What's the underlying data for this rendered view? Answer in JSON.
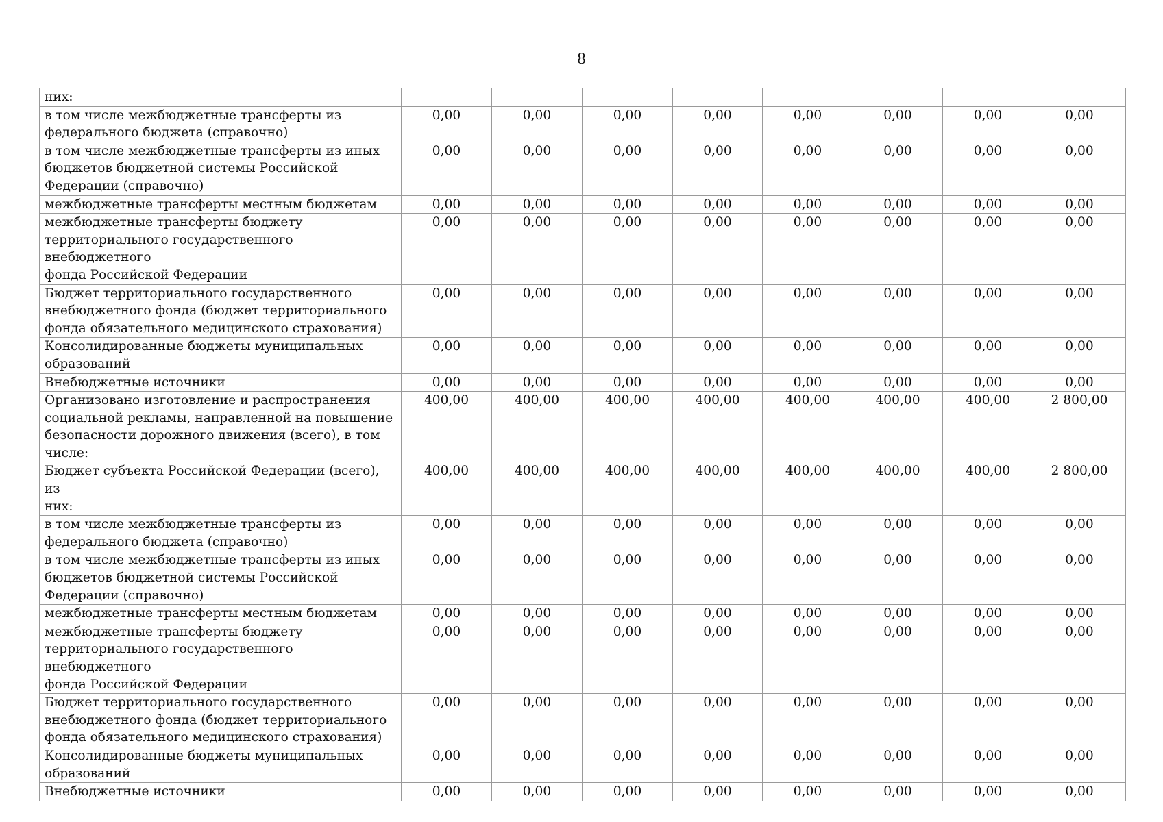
{
  "page_number": "8",
  "rows": [
    {
      "label": "них:",
      "values": [
        "",
        "",
        "",
        "",
        "",
        "",
        "",
        ""
      ]
    },
    {
      "label": "в том числе межбюджетные трансферты из\nфедерального бюджета (справочно)",
      "values": [
        "0,00",
        "0,00",
        "0,00",
        "0,00",
        "0,00",
        "0,00",
        "0,00",
        "0,00"
      ]
    },
    {
      "label": "в том числе межбюджетные трансферты из иных\nбюджетов бюджетной системы Российской\nФедерации (справочно)",
      "values": [
        "0,00",
        "0,00",
        "0,00",
        "0,00",
        "0,00",
        "0,00",
        "0,00",
        "0,00"
      ]
    },
    {
      "label": "межбюджетные трансферты местным бюджетам",
      "values": [
        "0,00",
        "0,00",
        "0,00",
        "0,00",
        "0,00",
        "0,00",
        "0,00",
        "0,00"
      ]
    },
    {
      "label": "межбюджетные трансферты бюджету\nтерриториального государственного внебюджетного\nфонда Российской Федерации",
      "values": [
        "0,00",
        "0,00",
        "0,00",
        "0,00",
        "0,00",
        "0,00",
        "0,00",
        "0,00"
      ]
    },
    {
      "label": "Бюджет территориального государственного\nвнебюджетного фонда (бюджет территориального\nфонда обязательного медицинского страхования)",
      "values": [
        "0,00",
        "0,00",
        "0,00",
        "0,00",
        "0,00",
        "0,00",
        "0,00",
        "0,00"
      ]
    },
    {
      "label": "Консолидированные бюджеты муниципальных\nобразований",
      "values": [
        "0,00",
        "0,00",
        "0,00",
        "0,00",
        "0,00",
        "0,00",
        "0,00",
        "0,00"
      ]
    },
    {
      "label": "Внебюджетные источники",
      "values": [
        "0,00",
        "0,00",
        "0,00",
        "0,00",
        "0,00",
        "0,00",
        "0,00",
        "0,00"
      ]
    },
    {
      "label": "Организовано изготовление и распространения\nсоциальной рекламы, направленной на повышение\nбезопасности дорожного движения (всего), в том\nчисле:",
      "values": [
        "400,00",
        "400,00",
        "400,00",
        "400,00",
        "400,00",
        "400,00",
        "400,00",
        "2 800,00"
      ]
    },
    {
      "label": "Бюджет субъекта Российской Федерации (всего), из\nних:",
      "values": [
        "400,00",
        "400,00",
        "400,00",
        "400,00",
        "400,00",
        "400,00",
        "400,00",
        "2 800,00"
      ]
    },
    {
      "label": "в том числе межбюджетные трансферты из\nфедерального бюджета (справочно)",
      "values": [
        "0,00",
        "0,00",
        "0,00",
        "0,00",
        "0,00",
        "0,00",
        "0,00",
        "0,00"
      ]
    },
    {
      "label": "в том числе межбюджетные трансферты из иных\nбюджетов бюджетной системы Российской\nФедерации (справочно)",
      "values": [
        "0,00",
        "0,00",
        "0,00",
        "0,00",
        "0,00",
        "0,00",
        "0,00",
        "0,00"
      ]
    },
    {
      "label": "межбюджетные трансферты местным бюджетам",
      "values": [
        "0,00",
        "0,00",
        "0,00",
        "0,00",
        "0,00",
        "0,00",
        "0,00",
        "0,00"
      ]
    },
    {
      "label": "межбюджетные трансферты бюджету\nтерриториального государственного внебюджетного\nфонда Российской Федерации",
      "values": [
        "0,00",
        "0,00",
        "0,00",
        "0,00",
        "0,00",
        "0,00",
        "0,00",
        "0,00"
      ]
    },
    {
      "label": "Бюджет территориального государственного\nвнебюджетного фонда (бюджет территориального\nфонда обязательного медицинского страхования)",
      "values": [
        "0,00",
        "0,00",
        "0,00",
        "0,00",
        "0,00",
        "0,00",
        "0,00",
        "0,00"
      ]
    },
    {
      "label": "Консолидированные бюджеты муниципальных\nобразований",
      "values": [
        "0,00",
        "0,00",
        "0,00",
        "0,00",
        "0,00",
        "0,00",
        "0,00",
        "0,00"
      ]
    },
    {
      "label": "Внебюджетные источники",
      "values": [
        "0,00",
        "0,00",
        "0,00",
        "0,00",
        "0,00",
        "0,00",
        "0,00",
        "0,00"
      ]
    }
  ]
}
